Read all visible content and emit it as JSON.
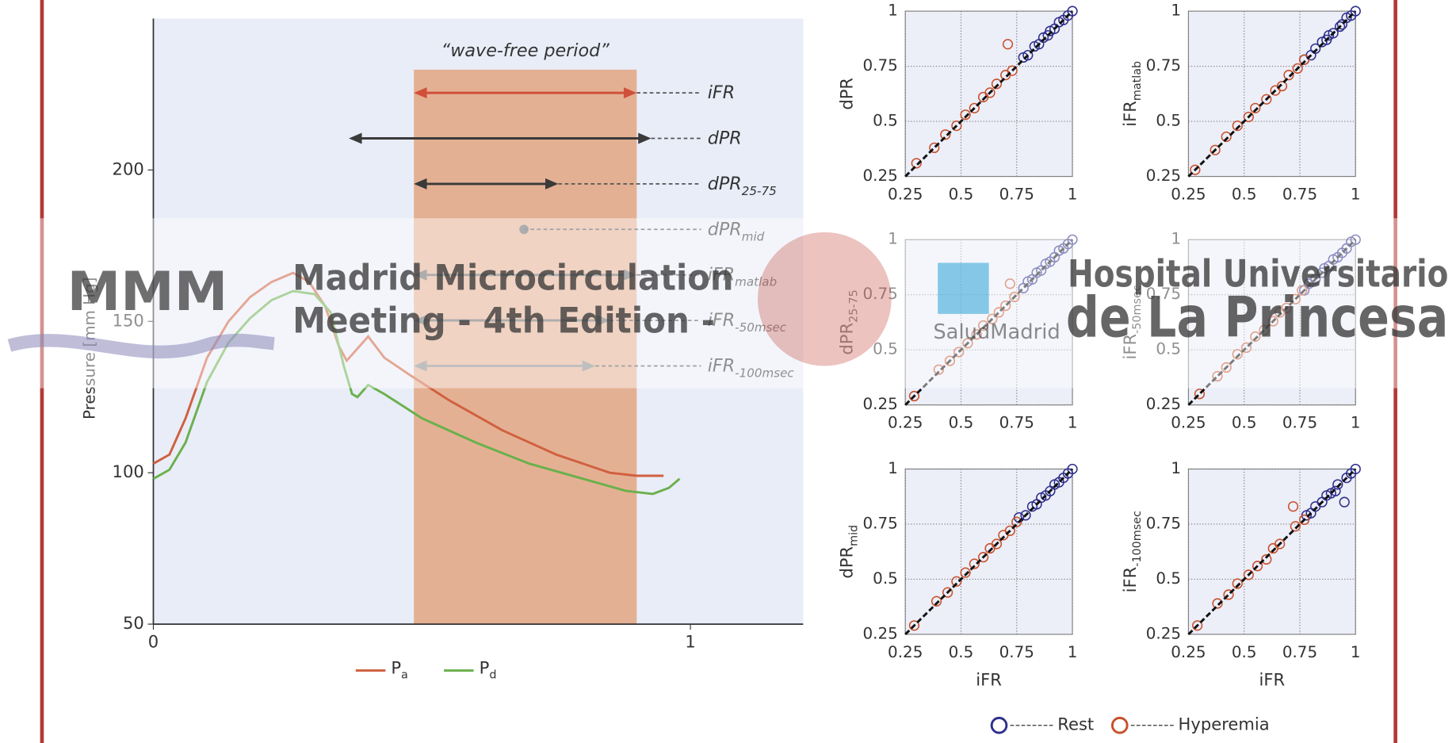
{
  "chart_data": [
    {
      "type": "line",
      "ylabel": "Pressure [mm Hg]",
      "xlim": [
        0,
        1.21
      ],
      "ylim": [
        50,
        250
      ],
      "xticks": [
        0,
        1
      ],
      "yticks": [
        50,
        100,
        150,
        200
      ],
      "shaded_region": {
        "label": "“wave-free period”",
        "x": [
          0.485,
          0.9
        ],
        "color": "#e4b093"
      },
      "intervals": [
        {
          "name": "iFR",
          "start": 0.485,
          "end": 0.9,
          "color": "#d0503a"
        },
        {
          "name": "dPR",
          "start": 0.364,
          "end": 0.927,
          "color": "#3a3a3a"
        },
        {
          "name": "dPR",
          "sub": "25-75",
          "start": 0.485,
          "end": 0.754,
          "color": "#3a3a3a"
        },
        {
          "name": "dPR",
          "sub": "mid",
          "start": 0.69,
          "end": 0.69,
          "color": "#6a6a6a"
        },
        {
          "name": "iFR",
          "sub": "matlab",
          "start": 0.485,
          "end": 0.9,
          "color": "#6a6a6a"
        },
        {
          "name": "iFR",
          "sub": "-50msec",
          "start": 0.485,
          "end": 0.85,
          "color": "#6a6a6a"
        },
        {
          "name": "iFR",
          "sub": "-100msec",
          "start": 0.485,
          "end": 0.823,
          "color": "#8a8a8a"
        }
      ],
      "series": [
        {
          "name": "P",
          "sub": "a",
          "color": "#d0603f",
          "x": [
            0,
            0.03,
            0.06,
            0.1,
            0.14,
            0.18,
            0.22,
            0.26,
            0.29,
            0.32,
            0.345,
            0.36,
            0.38,
            0.4,
            0.43,
            0.48,
            0.55,
            0.65,
            0.75,
            0.85,
            0.9,
            0.95
          ],
          "values": [
            103,
            106,
            118,
            138,
            150,
            158,
            163,
            166,
            163,
            155,
            142,
            137,
            141,
            145,
            138,
            132,
            124,
            114,
            106,
            100,
            99,
            99
          ]
        },
        {
          "name": "P",
          "sub": "d",
          "color": "#6ab04c",
          "x": [
            0,
            0.03,
            0.06,
            0.1,
            0.14,
            0.18,
            0.22,
            0.26,
            0.3,
            0.33,
            0.355,
            0.37,
            0.38,
            0.4,
            0.43,
            0.5,
            0.6,
            0.7,
            0.8,
            0.88,
            0.93,
            0.96,
            0.98
          ],
          "values": [
            98,
            101,
            110,
            130,
            143,
            151,
            157,
            160,
            159,
            153,
            135,
            126,
            125,
            129,
            126,
            118,
            110,
            103,
            98,
            94,
            93,
            95,
            98
          ]
        }
      ]
    },
    {
      "type": "scatter",
      "ylabel": "dPR",
      "xlim": [
        0.25,
        1
      ],
      "ylim": [
        0.25,
        1
      ],
      "xticks": [
        0.25,
        0.5,
        0.75,
        1
      ],
      "yticks": [
        0.25,
        0.5,
        0.75,
        1
      ],
      "grid": true,
      "series": [
        {
          "name": "Rest",
          "color": "#2e2f8c",
          "x": [
            0.78,
            0.8,
            0.83,
            0.85,
            0.87,
            0.89,
            0.9,
            0.92,
            0.94,
            0.96,
            0.98,
            1
          ],
          "y": [
            0.79,
            0.8,
            0.84,
            0.85,
            0.88,
            0.89,
            0.91,
            0.92,
            0.95,
            0.96,
            0.98,
            1
          ]
        },
        {
          "name": "Hyperemia",
          "color": "#c8502a",
          "x": [
            0.3,
            0.38,
            0.43,
            0.48,
            0.52,
            0.56,
            0.6,
            0.63,
            0.66,
            0.7,
            0.73,
            0.71
          ],
          "y": [
            0.31,
            0.38,
            0.44,
            0.48,
            0.53,
            0.56,
            0.61,
            0.63,
            0.67,
            0.71,
            0.73,
            0.85
          ]
        }
      ]
    },
    {
      "type": "scatter",
      "ylabel": "iFR",
      "ylabel_sub": "matlab",
      "xlim": [
        0.25,
        1
      ],
      "ylim": [
        0.25,
        1
      ],
      "xticks": [
        0.25,
        0.5,
        0.75,
        1
      ],
      "yticks": [
        0.25,
        0.5,
        0.75,
        1
      ],
      "grid": true,
      "series": [
        {
          "name": "Rest",
          "color": "#2e2f8c",
          "x": [
            0.77,
            0.8,
            0.82,
            0.85,
            0.87,
            0.88,
            0.9,
            0.93,
            0.94,
            0.96,
            0.98,
            1
          ],
          "y": [
            0.78,
            0.8,
            0.83,
            0.86,
            0.87,
            0.89,
            0.9,
            0.93,
            0.94,
            0.97,
            0.98,
            1
          ]
        },
        {
          "name": "Hyperemia",
          "color": "#c8502a",
          "x": [
            0.28,
            0.37,
            0.42,
            0.47,
            0.52,
            0.55,
            0.6,
            0.64,
            0.67,
            0.7,
            0.74,
            0.77
          ],
          "y": [
            0.28,
            0.37,
            0.43,
            0.48,
            0.52,
            0.56,
            0.6,
            0.64,
            0.66,
            0.71,
            0.74,
            0.78
          ]
        }
      ]
    },
    {
      "type": "scatter",
      "ylabel": "dPR",
      "ylabel_sub": "25-75",
      "xlim": [
        0.25,
        1
      ],
      "ylim": [
        0.25,
        1
      ],
      "xticks": [
        0.25,
        0.5,
        0.75,
        1
      ],
      "yticks": [
        0.25,
        0.5,
        0.75,
        1
      ],
      "grid": true,
      "series": [
        {
          "name": "Rest",
          "color": "#2e2f8c",
          "x": [
            0.78,
            0.8,
            0.82,
            0.84,
            0.86,
            0.88,
            0.9,
            0.92,
            0.94,
            0.96,
            0.98,
            1
          ],
          "y": [
            0.78,
            0.81,
            0.82,
            0.85,
            0.86,
            0.89,
            0.9,
            0.92,
            0.95,
            0.96,
            0.98,
            1
          ]
        },
        {
          "name": "Hyperemia",
          "color": "#c8502a",
          "x": [
            0.29,
            0.4,
            0.45,
            0.49,
            0.53,
            0.57,
            0.6,
            0.64,
            0.67,
            0.7,
            0.74,
            0.72
          ],
          "y": [
            0.29,
            0.41,
            0.45,
            0.49,
            0.53,
            0.57,
            0.61,
            0.64,
            0.67,
            0.7,
            0.74,
            0.8
          ]
        }
      ]
    },
    {
      "type": "scatter",
      "ylabel": "iFR",
      "ylabel_sub": "-50msec",
      "xlim": [
        0.25,
        1
      ],
      "ylim": [
        0.25,
        1
      ],
      "xticks": [
        0.25,
        0.5,
        0.75,
        1
      ],
      "yticks": [
        0.25,
        0.5,
        0.75,
        1
      ],
      "grid": true,
      "series": [
        {
          "name": "Rest",
          "color": "#2e2f8c",
          "x": [
            0.77,
            0.79,
            0.82,
            0.85,
            0.86,
            0.88,
            0.9,
            0.92,
            0.94,
            0.96,
            0.98,
            1
          ],
          "y": [
            0.77,
            0.8,
            0.82,
            0.85,
            0.87,
            0.88,
            0.91,
            0.92,
            0.94,
            0.96,
            0.99,
            1
          ]
        },
        {
          "name": "Hyperemia",
          "color": "#c8502a",
          "x": [
            0.3,
            0.38,
            0.42,
            0.47,
            0.51,
            0.55,
            0.59,
            0.63,
            0.66,
            0.69,
            0.73,
            0.76
          ],
          "y": [
            0.3,
            0.38,
            0.42,
            0.48,
            0.51,
            0.56,
            0.59,
            0.63,
            0.67,
            0.69,
            0.73,
            0.77
          ]
        }
      ]
    },
    {
      "type": "scatter",
      "ylabel": "dPR",
      "ylabel_sub": "mid",
      "xlabel": "iFR",
      "xlim": [
        0.25,
        1
      ],
      "ylim": [
        0.25,
        1
      ],
      "xticks": [
        0.25,
        0.5,
        0.75,
        1
      ],
      "yticks": [
        0.25,
        0.5,
        0.75,
        1
      ],
      "grid": true,
      "series": [
        {
          "name": "Rest",
          "color": "#2e2f8c",
          "x": [
            0.76,
            0.79,
            0.82,
            0.84,
            0.86,
            0.88,
            0.9,
            0.92,
            0.94,
            0.96,
            0.98,
            1
          ],
          "y": [
            0.78,
            0.79,
            0.83,
            0.84,
            0.87,
            0.88,
            0.9,
            0.93,
            0.94,
            0.96,
            0.98,
            1
          ]
        },
        {
          "name": "Hyperemia",
          "color": "#c8502a",
          "x": [
            0.29,
            0.39,
            0.44,
            0.48,
            0.52,
            0.56,
            0.6,
            0.63,
            0.66,
            0.69,
            0.72,
            0.75
          ],
          "y": [
            0.29,
            0.4,
            0.44,
            0.49,
            0.53,
            0.57,
            0.6,
            0.64,
            0.66,
            0.7,
            0.72,
            0.76
          ]
        }
      ]
    },
    {
      "type": "scatter",
      "ylabel": "iFR",
      "ylabel_sub": "-100msec",
      "xlabel": "iFR",
      "xlim": [
        0.25,
        1
      ],
      "ylim": [
        0.25,
        1
      ],
      "xticks": [
        0.25,
        0.5,
        0.75,
        1
      ],
      "yticks": [
        0.25,
        0.5,
        0.75,
        1
      ],
      "grid": true,
      "series": [
        {
          "name": "Rest",
          "color": "#2e2f8c",
          "x": [
            0.78,
            0.8,
            0.82,
            0.85,
            0.87,
            0.89,
            0.91,
            0.92,
            0.95,
            0.96,
            0.98,
            1
          ],
          "y": [
            0.79,
            0.8,
            0.83,
            0.85,
            0.88,
            0.89,
            0.9,
            0.93,
            0.85,
            0.96,
            0.98,
            1
          ]
        },
        {
          "name": "Hyperemia",
          "color": "#c8502a",
          "x": [
            0.29,
            0.38,
            0.43,
            0.47,
            0.52,
            0.56,
            0.6,
            0.63,
            0.66,
            0.72,
            0.73,
            0.77
          ],
          "y": [
            0.29,
            0.39,
            0.43,
            0.48,
            0.52,
            0.56,
            0.59,
            0.64,
            0.66,
            0.83,
            0.74,
            0.77
          ]
        }
      ]
    }
  ],
  "watermark": {
    "logo": "MMM",
    "event": [
      "Madrid Microcirculation",
      "Meeting - 4th Edition -"
    ],
    "sponsor": "SaludMadrid",
    "hospital": [
      "Hospital Universitario",
      "de La Princesa"
    ]
  }
}
